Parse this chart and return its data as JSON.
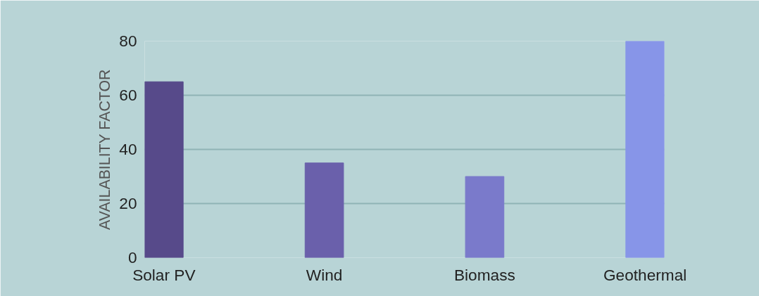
{
  "chart_data": {
    "type": "bar",
    "ylabel": "AVAILABILITY FACTOR",
    "categories": [
      "Solar PV",
      "Wind",
      "Biomass",
      "Geothermal"
    ],
    "values": [
      65,
      35,
      30,
      80
    ],
    "colors": [
      "#574a8a",
      "#6a60ab",
      "#7a7acb",
      "#8795e8"
    ],
    "ylim": [
      0,
      80
    ],
    "yticks": [
      0,
      20,
      40,
      60,
      80
    ],
    "grid": "y"
  }
}
